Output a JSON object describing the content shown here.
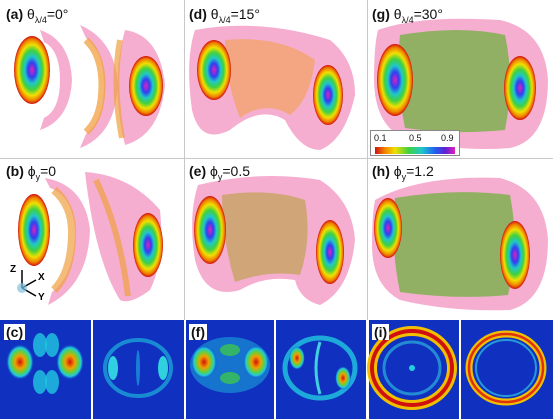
{
  "panels": {
    "a": {
      "tag": "(a)",
      "sym": "θ",
      "sub": "λ/4",
      "eq": "=0°"
    },
    "d": {
      "tag": "(d)",
      "sym": "θ",
      "sub": "λ/4",
      "eq": "=15°"
    },
    "g": {
      "tag": "(g)",
      "sym": "θ",
      "sub": "λ/4",
      "eq": "=30°"
    },
    "b": {
      "tag": "(b)",
      "sym": "ϕ",
      "sub": "y",
      "eq": "=0"
    },
    "e": {
      "tag": "(e)",
      "sym": "ϕ",
      "sub": "y",
      "eq": "=0.5"
    },
    "h": {
      "tag": "(h)",
      "sym": "ϕ",
      "sub": "y",
      "eq": "=1.2"
    },
    "c": {
      "tag": "(c)"
    },
    "f": {
      "tag": "(f)"
    },
    "i": {
      "tag": "(i)"
    }
  },
  "colorbar": {
    "ticks": [
      "0.1",
      "0.5",
      "0.9"
    ]
  },
  "axes": {
    "z": "Z",
    "x": "X",
    "y": "Y"
  },
  "colors": {
    "shell": "#f4a0c8",
    "inner": "#f0a040",
    "green": "#70b040",
    "bg_image": "#1030c0"
  }
}
